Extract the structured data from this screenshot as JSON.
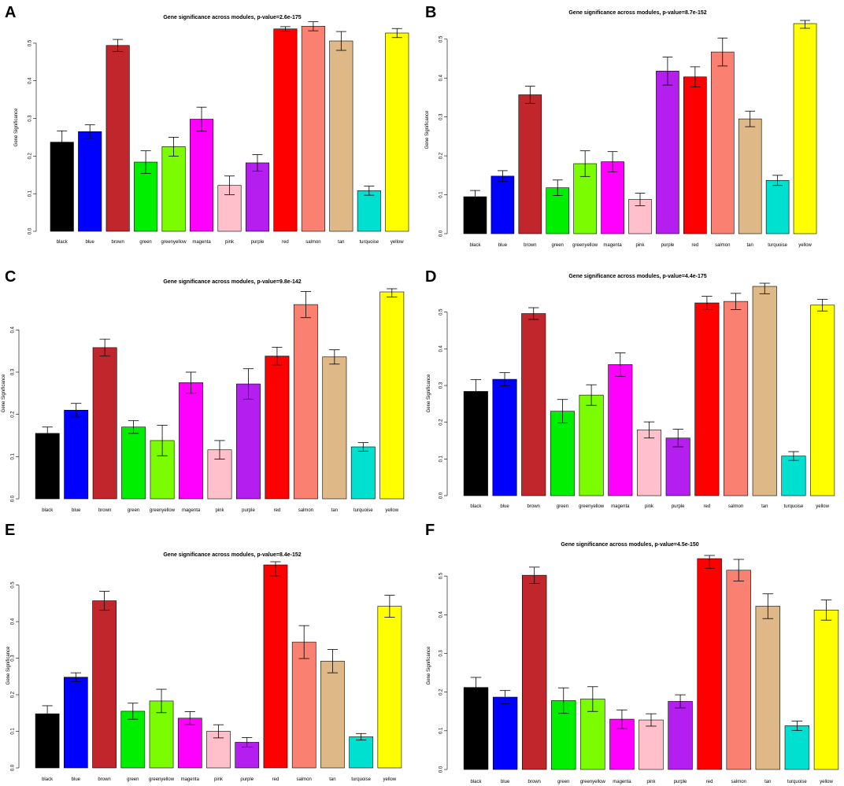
{
  "colors": {
    "black": "#000000",
    "blue": "#0000ff",
    "brown": "#c0262b",
    "green": "#00ee00",
    "greenyellow": "#7cfc00",
    "magenta": "#ff00ff",
    "pink": "#ffc0cb",
    "purple": "#b41ff0",
    "red": "#ff0000",
    "salmon": "#fa8072",
    "tan": "#deb887",
    "turquoise": "#00e0d0",
    "yellow": "#ffff00"
  },
  "chart_data": [
    {
      "panel": "A",
      "type": "bar",
      "title": "Gene significance across modules, p-value=2.6e-175",
      "ylabel": "Gene Significance",
      "show_ylabel": true,
      "ylim": [
        0,
        0.55
      ],
      "yticks": [
        "0.0",
        "0.1",
        "0.2",
        "0.3",
        "0.4",
        "0.5"
      ],
      "categories": [
        "black",
        "blue",
        "brown",
        "green",
        "greenyellow",
        "magenta",
        "pink",
        "purple",
        "red",
        "salmon",
        "tan",
        "turquoise",
        "yellow"
      ],
      "values": [
        0.237,
        0.265,
        0.494,
        0.184,
        0.225,
        0.298,
        0.122,
        0.182,
        0.538,
        0.545,
        0.506,
        0.108,
        0.527
      ],
      "errors": [
        0.03,
        0.018,
        0.016,
        0.03,
        0.025,
        0.032,
        0.025,
        0.022,
        0.006,
        0.012,
        0.025,
        0.012,
        0.012
      ]
    },
    {
      "panel": "B",
      "type": "bar",
      "title": "Gene significance across modules, p-value=8.7e-152",
      "ylabel": "Gene Significance",
      "show_ylabel": true,
      "ylim": [
        0,
        0.54
      ],
      "yticks": [
        "0.0",
        "0.1",
        "0.2",
        "0.3",
        "0.4",
        "0.5"
      ],
      "categories": [
        "black",
        "blue",
        "brown",
        "green",
        "greenyellow",
        "magenta",
        "pink",
        "purple",
        "red",
        "salmon",
        "tan",
        "turquoise",
        "yellow"
      ],
      "values": [
        0.095,
        0.148,
        0.357,
        0.118,
        0.18,
        0.185,
        0.088,
        0.418,
        0.403,
        0.467,
        0.295,
        0.137,
        0.54
      ],
      "errors": [
        0.016,
        0.014,
        0.022,
        0.02,
        0.033,
        0.026,
        0.016,
        0.036,
        0.026,
        0.036,
        0.02,
        0.013,
        0.012
      ]
    },
    {
      "panel": "C",
      "type": "bar",
      "title": "Gene significance across modules, p-value=9.8e-142",
      "ylabel": "Gene Significance",
      "show_ylabel": true,
      "ylim": [
        0,
        0.49
      ],
      "yticks": [
        "0.0",
        "0.1",
        "0.2",
        "0.3",
        "0.4"
      ],
      "categories": [
        "black",
        "blue",
        "brown",
        "green",
        "greenyellow",
        "magenta",
        "pink",
        "purple",
        "red",
        "salmon",
        "tan",
        "turquoise",
        "yellow"
      ],
      "values": [
        0.155,
        0.21,
        0.358,
        0.17,
        0.138,
        0.275,
        0.116,
        0.272,
        0.338,
        0.46,
        0.336,
        0.123,
        0.49
      ],
      "errors": [
        0.015,
        0.016,
        0.02,
        0.015,
        0.036,
        0.025,
        0.022,
        0.036,
        0.021,
        0.031,
        0.017,
        0.01,
        0.012
      ]
    },
    {
      "panel": "D",
      "type": "bar",
      "title": "Gene significance across modules, p-value=4.4e-175",
      "ylabel": "Gene Significance",
      "show_ylabel": true,
      "ylim": [
        0,
        0.57
      ],
      "yticks": [
        "0.0",
        "0.1",
        "0.2",
        "0.3",
        "0.4",
        "0.5"
      ],
      "categories": [
        "black",
        "blue",
        "brown",
        "green",
        "greenyellow",
        "magenta",
        "pink",
        "purple",
        "red",
        "salmon",
        "tan",
        "turquoise",
        "yellow"
      ],
      "values": [
        0.284,
        0.317,
        0.496,
        0.23,
        0.274,
        0.357,
        0.179,
        0.157,
        0.525,
        0.529,
        0.57,
        0.108,
        0.519
      ],
      "errors": [
        0.032,
        0.018,
        0.016,
        0.032,
        0.028,
        0.032,
        0.022,
        0.024,
        0.018,
        0.022,
        0.02,
        0.012,
        0.016
      ]
    },
    {
      "panel": "E",
      "type": "bar",
      "title": "Gene significance across modules, p-value=8.4e-152",
      "ylabel": "Gene Significance",
      "show_ylabel": true,
      "ylim": [
        0,
        0.555
      ],
      "yticks": [
        "0.0",
        "0.1",
        "0.2",
        "0.3",
        "0.4",
        "0.5"
      ],
      "categories": [
        "black",
        "blue",
        "brown",
        "green",
        "greenyellow",
        "magenta",
        "pink",
        "purple",
        "red",
        "salmon",
        "tan",
        "turquoise",
        "yellow"
      ],
      "values": [
        0.148,
        0.248,
        0.457,
        0.155,
        0.183,
        0.136,
        0.1,
        0.07,
        0.555,
        0.344,
        0.292,
        0.085,
        0.442
      ],
      "errors": [
        0.022,
        0.012,
        0.026,
        0.022,
        0.032,
        0.018,
        0.018,
        0.013,
        0.03,
        0.045,
        0.032,
        0.009,
        0.03
      ]
    },
    {
      "panel": "F",
      "type": "bar",
      "title": "Gene significance across modules, p-value=4.5e-150",
      "ylabel": "Gene Significance",
      "show_ylabel": true,
      "ylim": [
        0,
        0.545
      ],
      "yticks": [
        "0.0",
        "0.1",
        "0.2",
        "0.3",
        "0.4",
        "0.5"
      ],
      "categories": [
        "black",
        "blue",
        "brown",
        "green",
        "greenyellow",
        "magenta",
        "pink",
        "purple",
        "red",
        "salmon",
        "tan",
        "turquoise",
        "yellow"
      ],
      "values": [
        0.212,
        0.187,
        0.502,
        0.178,
        0.182,
        0.13,
        0.128,
        0.176,
        0.545,
        0.515,
        0.422,
        0.113,
        0.412
      ],
      "errors": [
        0.026,
        0.017,
        0.021,
        0.033,
        0.032,
        0.024,
        0.016,
        0.017,
        0.025,
        0.028,
        0.032,
        0.012,
        0.026
      ]
    }
  ]
}
